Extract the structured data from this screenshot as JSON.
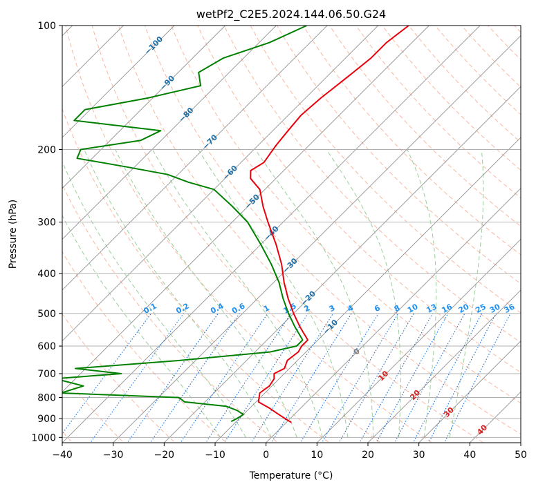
{
  "chart_data": {
    "type": "line",
    "title": "wetPf2_C2E5.2024.144.06.50.G24",
    "xlabel": "Temperature (°C)",
    "ylabel": "Pressure (hPa)",
    "xlim": [
      -40,
      50
    ],
    "ylim": [
      1030,
      100
    ],
    "x_ticks": [
      "−40",
      "−30",
      "−20",
      "−10",
      "0",
      "10",
      "20",
      "30",
      "40",
      "50"
    ],
    "x_tick_values": [
      -40,
      -30,
      -20,
      -10,
      0,
      10,
      20,
      30,
      40,
      50
    ],
    "y_ticks": [
      "100",
      "200",
      "300",
      "400",
      "500",
      "600",
      "700",
      "800",
      "900",
      "1000"
    ],
    "y_tick_values": [
      100,
      200,
      300,
      400,
      500,
      600,
      700,
      800,
      900,
      1000
    ],
    "colors": {
      "temperature": "#e8000b",
      "dewpoint": "#008000",
      "dry_adiabat": "#f7a58a",
      "moist_adiabat": "#90c890",
      "mixing_ratio": "#1f77e0",
      "isotherm": "#909090",
      "mixing_label": "#2090f0",
      "isotherm_label": "#1f6fa8",
      "isotherm_label_warm": "#d62020",
      "isotherm_label_zero": "#808080"
    },
    "series": [
      {
        "name": "Temperature",
        "color": "#e8000b",
        "pressure": [
          100,
          110,
          120,
          135,
          150,
          165,
          180,
          195,
          205,
          215,
          225,
          235,
          250,
          275,
          300,
          340,
          380,
          420,
          460,
          500,
          540,
          580,
          600,
          620,
          650,
          680,
          700,
          720,
          750,
          780,
          820,
          850,
          870,
          890,
          910,
          920
        ],
        "temperature": [
          -54,
          -55,
          -55,
          -56,
          -57,
          -57.5,
          -57,
          -56.5,
          -56,
          -55.5,
          -56.5,
          -55,
          -51,
          -47,
          -43,
          -37,
          -32,
          -28,
          -24,
          -20,
          -16,
          -12,
          -12,
          -11.5,
          -12,
          -11,
          -12,
          -11,
          -10.5,
          -11,
          -9.5,
          -6,
          -4,
          -2,
          0,
          1
        ]
      },
      {
        "name": "Dewpoint",
        "color": "#008000",
        "pressure": [
          100,
          110,
          120,
          130,
          140,
          150,
          160,
          170,
          180,
          190,
          200,
          210,
          220,
          230,
          240,
          250,
          275,
          300,
          340,
          380,
          420,
          460,
          500,
          540,
          580,
          600,
          620,
          650,
          680,
          700,
          720,
          750,
          780,
          800,
          820,
          840,
          860,
          880,
          900,
          915
        ],
        "temperature": [
          -74,
          -78,
          -84,
          -86,
          -83,
          -91,
          -101,
          -101,
          -82,
          -84,
          -94,
          -93,
          -82,
          -72,
          -66.5,
          -60,
          -53,
          -47,
          -40,
          -34,
          -29,
          -25,
          -21,
          -17,
          -13,
          -13,
          -17,
          -33,
          -52,
          -42,
          -54,
          -47,
          -50,
          -26,
          -24,
          -15,
          -12,
          -10,
          -10.5,
          -11
        ]
      }
    ],
    "isotherm_labels": [
      "−100",
      "−90",
      "−80",
      "−70",
      "−60",
      "−50",
      "−40",
      "−30",
      "−20",
      "−10",
      "0",
      "10",
      "20",
      "30",
      "40"
    ],
    "isotherm_label_values": [
      -100,
      -90,
      -80,
      -70,
      -60,
      -50,
      -40,
      -30,
      -20,
      -10,
      0,
      10,
      20,
      30,
      40
    ],
    "mixing_ratio_labels": [
      "0.1",
      "0.2",
      "0.4",
      "0.6",
      "1",
      "1.5",
      "2",
      "3",
      "4",
      "6",
      "8",
      "10",
      "13",
      "16",
      "20",
      "25",
      "30",
      "36"
    ],
    "mixing_ratio_values": [
      0.1,
      0.2,
      0.4,
      0.6,
      1,
      1.5,
      2,
      3,
      4,
      6,
      8,
      10,
      13,
      16,
      20,
      25,
      30,
      36
    ],
    "mixing_ratio_label_pressure": 500,
    "grid": true,
    "legend": "none"
  }
}
